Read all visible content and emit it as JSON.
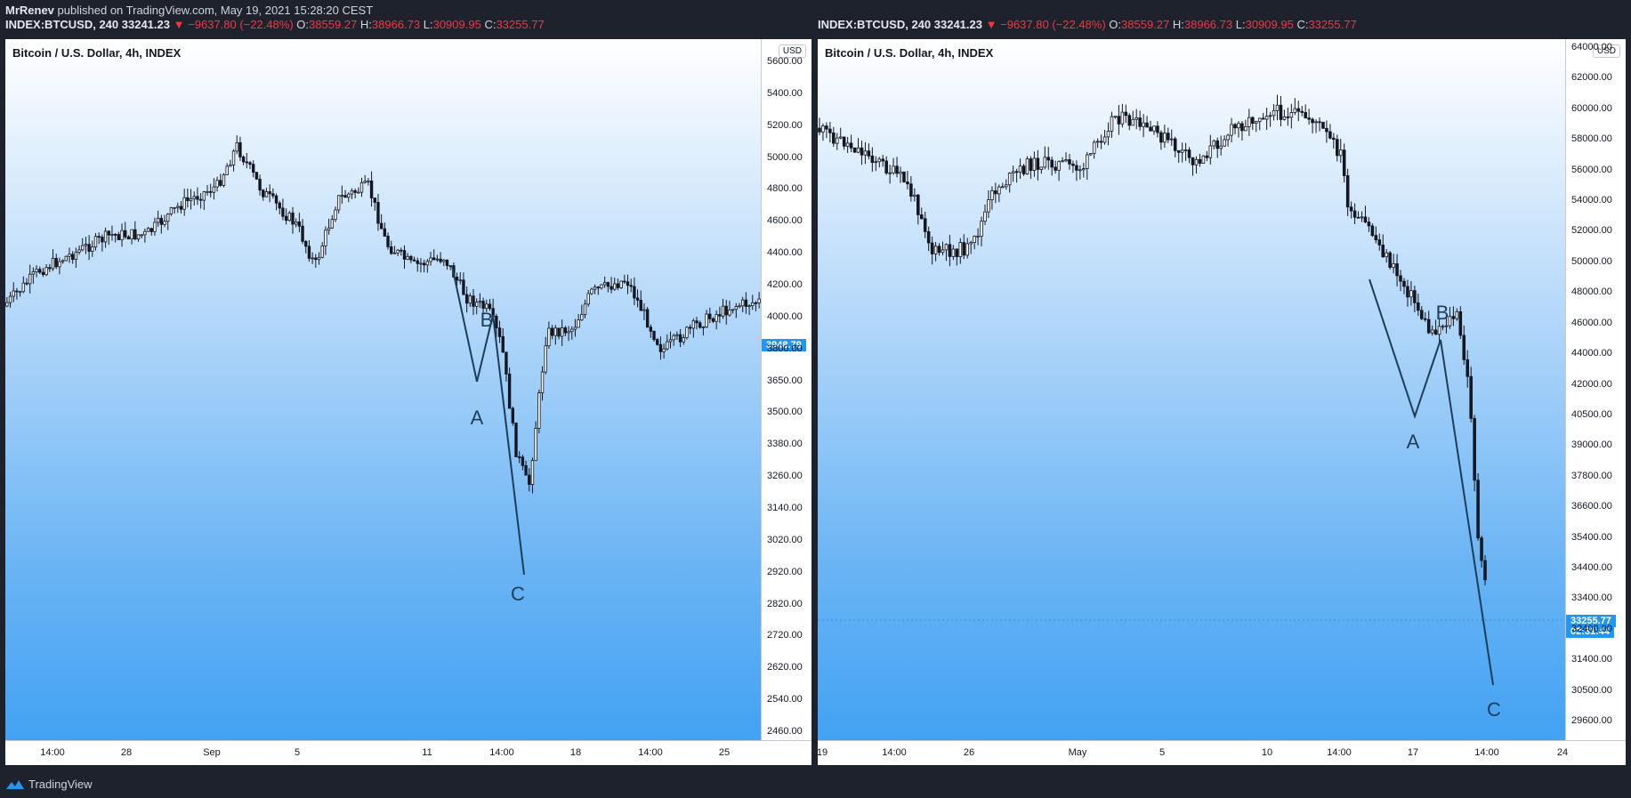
{
  "publisher": {
    "author": "MrRenev",
    "text": "published on TradingView.com, May 19, 2021 15:28:20 CEST"
  },
  "quote": {
    "symbol": "INDEX:BTCUSD, 240",
    "last": "33241.23",
    "change": "−9637.80 (−22.48%)",
    "o_label": "O:",
    "o": "38559.27",
    "h_label": "H:",
    "h": "38966.73",
    "l_label": "L:",
    "l": "30909.95",
    "c_label": "C:",
    "c": "33255.77"
  },
  "colors": {
    "down": "#f23645",
    "wave_line": "#1e3d58",
    "price_tag": "#2196f3"
  },
  "left_panel": {
    "title": "Bitcoin / U.S. Dollar, 4h, INDEX",
    "currency": "USD",
    "price_tag": "3948.79",
    "yticks": [
      "5600.00",
      "5400.00",
      "5200.00",
      "5000.00",
      "4800.00",
      "4600.00",
      "4400.00",
      "4200.00",
      "4000.00",
      "3800.00",
      "3650.00",
      "3500.00",
      "3380.00",
      "3260.00",
      "3140.00",
      "3020.00",
      "2920.00",
      "2820.00",
      "2720.00",
      "2620.00",
      "2540.00",
      "2460.00"
    ],
    "xticks": [
      "14:00",
      "28",
      "Sep",
      "5",
      "11",
      "14:00",
      "18",
      "14:00",
      "25"
    ],
    "waves": [
      "A",
      "B",
      "C"
    ]
  },
  "right_panel": {
    "title": "Bitcoin / U.S. Dollar, 4h, INDEX",
    "currency": "USD",
    "price_tag": "33255.77",
    "countdown": "02:31:44",
    "yticks": [
      "64000.00",
      "62000.00",
      "60000.00",
      "58000.00",
      "56000.00",
      "54000.00",
      "52000.00",
      "50000.00",
      "48000.00",
      "46000.00",
      "44000.00",
      "42000.00",
      "40500.00",
      "39000.00",
      "37800.00",
      "36600.00",
      "35400.00",
      "34400.00",
      "33400.00",
      "32400.00",
      "31400.00",
      "30500.00",
      "29600.00"
    ],
    "xticks": [
      "19",
      "14:00",
      "26",
      "May",
      "5",
      "10",
      "14:00",
      "17",
      "14:00",
      "24"
    ],
    "waves": [
      "A",
      "B",
      "C"
    ]
  },
  "footer": {
    "brand": "TradingView"
  }
}
